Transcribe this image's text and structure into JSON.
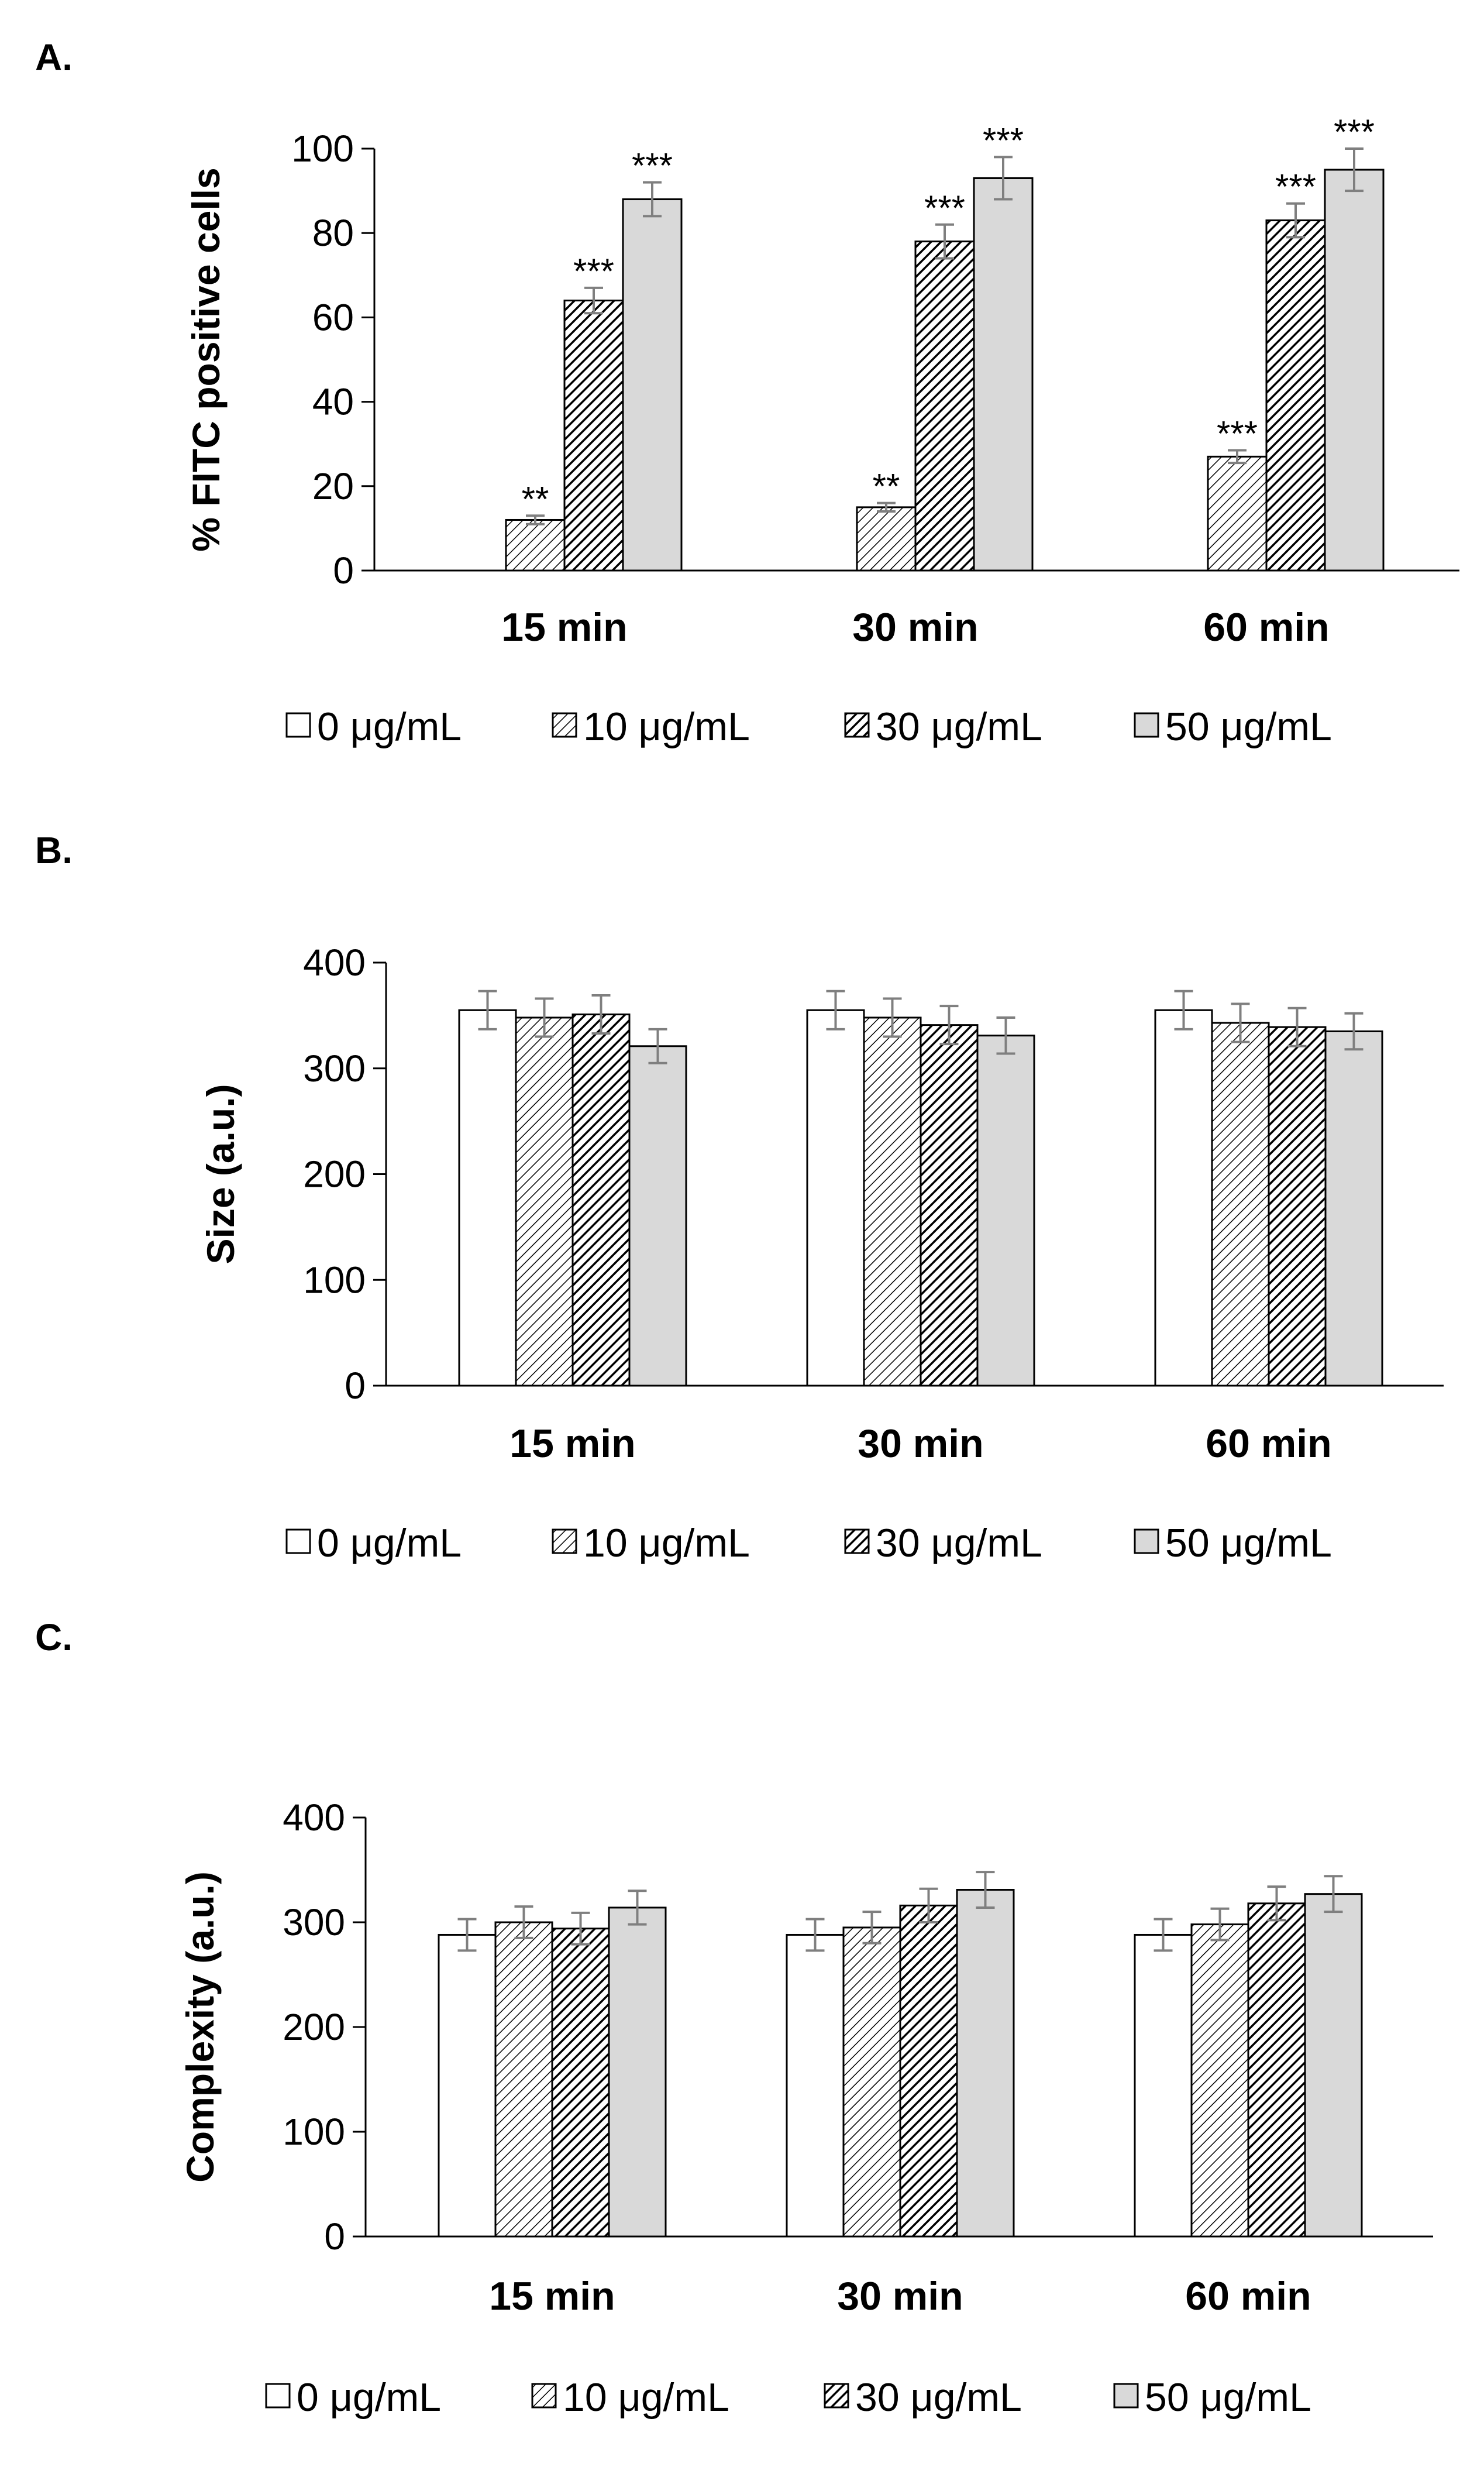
{
  "colors": {
    "axis": "#000000",
    "bar_stroke": "#000000",
    "error_bar": "#7f7f7f",
    "fill_50": "#d9d9d9",
    "fill_0": "#ffffff"
  },
  "legend": [
    "0 μg/mL",
    "10 μg/mL",
    "30 μg/mL",
    "50 μg/mL"
  ],
  "chart_data": [
    {
      "panel": "A.",
      "type": "bar",
      "ylabel": "% FITC positive cells",
      "ylim": [
        0,
        100
      ],
      "yticks": [
        0,
        20,
        40,
        60,
        80,
        100
      ],
      "categories": [
        "15 min",
        "30 min",
        "60 min"
      ],
      "series": [
        {
          "name": "0 μg/mL",
          "values": [
            0,
            0,
            0
          ],
          "errors": [
            0,
            0,
            0
          ],
          "sig": [
            "",
            "",
            ""
          ]
        },
        {
          "name": "10 μg/mL",
          "values": [
            12,
            15,
            27
          ],
          "errors": [
            1,
            1,
            1.5
          ],
          "sig": [
            "**",
            "**",
            "***"
          ]
        },
        {
          "name": "30 μg/mL",
          "values": [
            64,
            78,
            83
          ],
          "errors": [
            3,
            4,
            4
          ],
          "sig": [
            "***",
            "***",
            "***"
          ]
        },
        {
          "name": "50 μg/mL",
          "values": [
            88,
            93,
            95
          ],
          "errors": [
            4,
            5,
            5
          ],
          "sig": [
            "***",
            "***",
            "***"
          ]
        }
      ]
    },
    {
      "panel": "B.",
      "type": "bar",
      "ylabel": "Size (a.u.)",
      "ylim": [
        0,
        400
      ],
      "yticks": [
        0,
        100,
        200,
        300,
        400
      ],
      "categories": [
        "15 min",
        "30 min",
        "60 min"
      ],
      "series": [
        {
          "name": "0 μg/mL",
          "values": [
            355,
            355,
            355
          ],
          "errors": [
            18,
            18,
            18
          ]
        },
        {
          "name": "10 μg/mL",
          "values": [
            348,
            348,
            343
          ],
          "errors": [
            18,
            18,
            18
          ]
        },
        {
          "name": "30 μg/mL",
          "values": [
            351,
            341,
            339
          ],
          "errors": [
            18,
            18,
            18
          ]
        },
        {
          "name": "50 μg/mL",
          "values": [
            321,
            331,
            335
          ],
          "errors": [
            16,
            17,
            17
          ]
        }
      ]
    },
    {
      "panel": "C.",
      "type": "bar",
      "ylabel": "Complexity (a.u.)",
      "ylim": [
        0,
        400
      ],
      "yticks": [
        0,
        100,
        200,
        300,
        400
      ],
      "categories": [
        "15 min",
        "30 min",
        "60 min"
      ],
      "series": [
        {
          "name": "0 μg/mL",
          "values": [
            288,
            288,
            288
          ],
          "errors": [
            15,
            15,
            15
          ]
        },
        {
          "name": "10 μg/mL",
          "values": [
            300,
            295,
            298
          ],
          "errors": [
            15,
            15,
            15
          ]
        },
        {
          "name": "30 μg/mL",
          "values": [
            294,
            316,
            318
          ],
          "errors": [
            15,
            16,
            16
          ]
        },
        {
          "name": "50 μg/mL",
          "values": [
            314,
            331,
            327
          ],
          "errors": [
            16,
            17,
            17
          ]
        }
      ]
    }
  ]
}
